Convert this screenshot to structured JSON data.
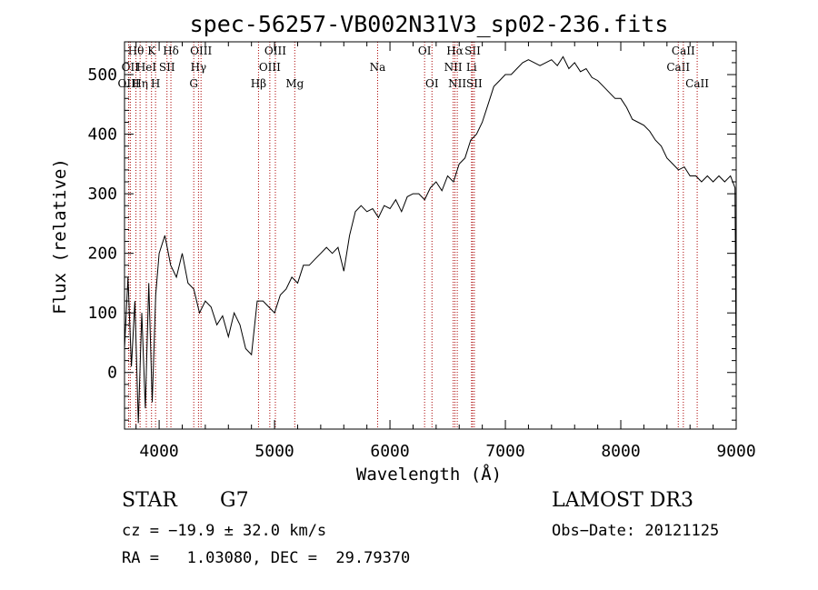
{
  "chart_data": {
    "type": "line",
    "title": "spec-56257-VB002N31V3_sp02-236.fits",
    "xlabel": "Wavelength (Å)",
    "ylabel": "Flux (relative)",
    "xlim": [
      3700,
      9000
    ],
    "ylim": [
      -95,
      555
    ],
    "x_ticks": [
      4000,
      5000,
      6000,
      7000,
      8000,
      9000
    ],
    "y_ticks": [
      0,
      100,
      200,
      300,
      400,
      500
    ],
    "line_color": "#000000",
    "marker_color": "#aa0000",
    "series": [
      {
        "name": "spectrum",
        "x": [
          3700,
          3730,
          3760,
          3790,
          3820,
          3850,
          3880,
          3910,
          3940,
          3970,
          4000,
          4050,
          4100,
          4150,
          4200,
          4250,
          4300,
          4350,
          4400,
          4450,
          4500,
          4550,
          4600,
          4650,
          4700,
          4750,
          4800,
          4850,
          4900,
          4950,
          5000,
          5050,
          5100,
          5150,
          5200,
          5250,
          5300,
          5350,
          5400,
          5450,
          5500,
          5550,
          5600,
          5650,
          5700,
          5750,
          5800,
          5850,
          5900,
          5950,
          6000,
          6050,
          6100,
          6150,
          6200,
          6250,
          6300,
          6350,
          6400,
          6450,
          6500,
          6550,
          6600,
          6650,
          6700,
          6750,
          6800,
          6850,
          6900,
          6950,
          7000,
          7050,
          7100,
          7150,
          7200,
          7250,
          7300,
          7350,
          7400,
          7450,
          7500,
          7550,
          7600,
          7650,
          7700,
          7750,
          7800,
          7850,
          7900,
          7950,
          8000,
          8050,
          8100,
          8150,
          8200,
          8250,
          8300,
          8350,
          8400,
          8450,
          8500,
          8550,
          8600,
          8650,
          8700,
          8750,
          8800,
          8850,
          8900,
          8950,
          8990,
          9000
        ],
        "y": [
          40,
          160,
          10,
          120,
          -85,
          100,
          -60,
          150,
          -50,
          130,
          200,
          230,
          180,
          160,
          200,
          150,
          140,
          100,
          120,
          110,
          80,
          95,
          60,
          100,
          80,
          40,
          30,
          120,
          120,
          110,
          100,
          130,
          140,
          160,
          150,
          180,
          180,
          190,
          200,
          210,
          200,
          210,
          170,
          230,
          270,
          280,
          270,
          275,
          260,
          280,
          275,
          290,
          270,
          295,
          300,
          300,
          290,
          310,
          320,
          305,
          330,
          320,
          350,
          360,
          390,
          400,
          420,
          450,
          480,
          490,
          500,
          500,
          510,
          520,
          525,
          520,
          515,
          520,
          525,
          515,
          530,
          510,
          520,
          505,
          510,
          495,
          490,
          480,
          470,
          460,
          460,
          445,
          425,
          420,
          415,
          405,
          390,
          380,
          360,
          350,
          340,
          345,
          330,
          330,
          320,
          330,
          320,
          330,
          320,
          330,
          310,
          -5
        ]
      }
    ],
    "lines": [
      {
        "wave": 3799,
        "label": "Hθ",
        "row": 0
      },
      {
        "wave": 3750,
        "label": "OII",
        "row": 1
      },
      {
        "wave": 3736,
        "label": "OIII",
        "row": 2
      },
      {
        "wave": 3835,
        "label": "Hη",
        "row": 2
      },
      {
        "wave": 3889,
        "label": "HeI",
        "row": 1
      },
      {
        "wave": 3934,
        "label": "K",
        "row": 0
      },
      {
        "wave": 3969,
        "label": "H",
        "row": 2
      },
      {
        "wave": 4068,
        "label": "SII",
        "row": 1
      },
      {
        "wave": 4102,
        "label": "Hδ",
        "row": 0
      },
      {
        "wave": 4300,
        "label": "G",
        "row": 2
      },
      {
        "wave": 4341,
        "label": "Hγ",
        "row": 1
      },
      {
        "wave": 4363,
        "label": "OIII",
        "row": 0
      },
      {
        "wave": 4861,
        "label": "Hβ",
        "row": 2
      },
      {
        "wave": 4959,
        "label": "OIII",
        "row": 1
      },
      {
        "wave": 5007,
        "label": "OIII",
        "row": 0
      },
      {
        "wave": 5175,
        "label": "Mg",
        "row": 2
      },
      {
        "wave": 5893,
        "label": "Na",
        "row": 1
      },
      {
        "wave": 6300,
        "label": "OI",
        "row": 0
      },
      {
        "wave": 6364,
        "label": "OI",
        "row": 2
      },
      {
        "wave": 6548,
        "label": "NII",
        "row": 1
      },
      {
        "wave": 6563,
        "label": "Hα",
        "row": 0
      },
      {
        "wave": 6583,
        "label": "NII",
        "row": 2
      },
      {
        "wave": 6707,
        "label": "Li",
        "row": 1
      },
      {
        "wave": 6716,
        "label": "SII",
        "row": 0
      },
      {
        "wave": 6731,
        "label": "SII",
        "row": 2
      },
      {
        "wave": 8498,
        "label": "CaII",
        "row": 1
      },
      {
        "wave": 8542,
        "label": "CaII",
        "row": 0
      },
      {
        "wave": 8662,
        "label": "CaII",
        "row": 2
      }
    ]
  },
  "info": {
    "object_class": "STAR",
    "subclass": "G7",
    "survey": "LAMOST DR3",
    "redshift": "cz = −19.9 ± 32.0 km/s",
    "obs_date": "Obs−Date: 20121125",
    "coords": "RA =   1.03080, DEC =  29.79370"
  }
}
